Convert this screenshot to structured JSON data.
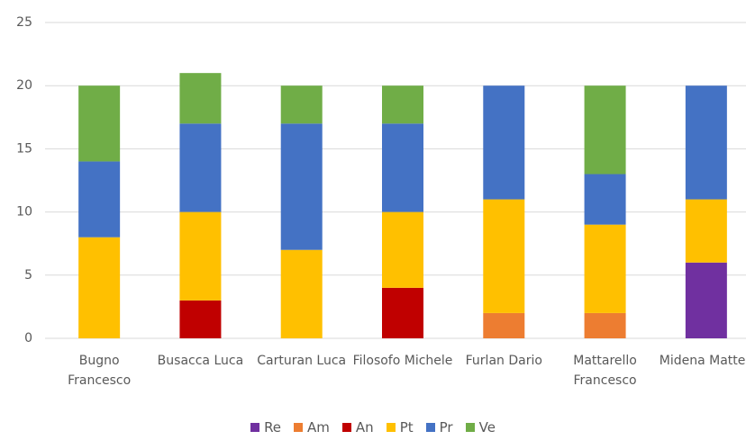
{
  "chart_data": {
    "type": "stacked_bar",
    "categories": [
      "Bugno Francesco",
      "Busacca Luca",
      "Carturan Luca",
      "Filosofo Michele",
      "Furlan Dario",
      "Mattarello Francesco",
      "Midena Matteo"
    ],
    "series": [
      {
        "name": "Re",
        "color": "#7030a0",
        "values": [
          0,
          0,
          0,
          0,
          0,
          0,
          6
        ]
      },
      {
        "name": "Am",
        "color": "#ed7d31",
        "values": [
          0,
          0,
          0,
          0,
          2,
          2,
          0
        ]
      },
      {
        "name": "An",
        "color": "#c00000",
        "values": [
          0,
          3,
          0,
          4,
          0,
          0,
          0
        ]
      },
      {
        "name": "Pt",
        "color": "#ffc000",
        "values": [
          8,
          7,
          7,
          6,
          9,
          7,
          5
        ]
      },
      {
        "name": "Pr",
        "color": "#4472c4",
        "values": [
          6,
          7,
          10,
          7,
          9,
          4,
          9
        ]
      },
      {
        "name": "Ve",
        "color": "#70ad47",
        "values": [
          6,
          4,
          3,
          3,
          0,
          7,
          0
        ]
      }
    ],
    "ylim": [
      0,
      25
    ],
    "yticks": [
      0,
      5,
      10,
      15,
      20,
      25
    ],
    "grid": true,
    "legend": "bottom"
  }
}
